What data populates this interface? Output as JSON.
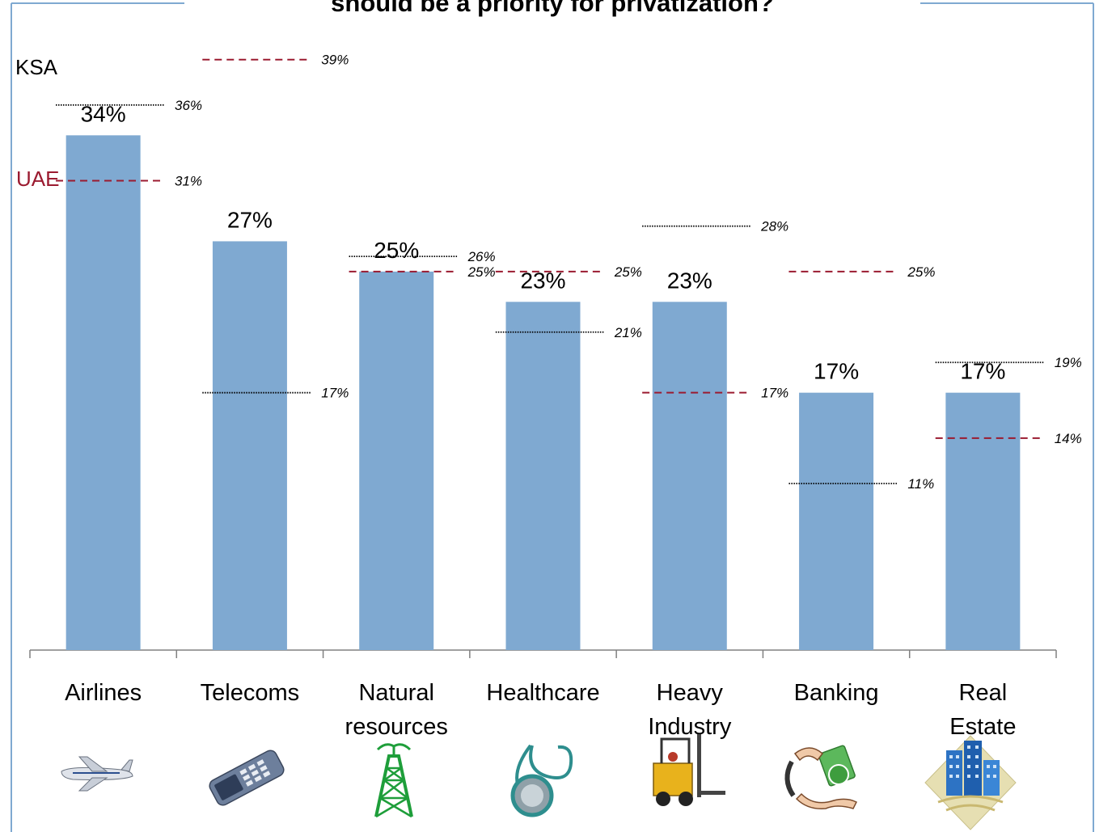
{
  "title": "should be a priority for privatization?",
  "chart_data": {
    "type": "bar",
    "title": "should be a priority for privatization?",
    "categories": [
      [
        "Airlines"
      ],
      [
        "Telecoms"
      ],
      [
        "Natural",
        "resources"
      ],
      [
        "Healthcare"
      ],
      [
        "Heavy",
        "Industry"
      ],
      [
        "Banking"
      ],
      [
        "Real",
        "Estate"
      ]
    ],
    "values": [
      34,
      27,
      25,
      23,
      23,
      17,
      17
    ],
    "value_labels": [
      "34%",
      "27%",
      "25%",
      "23%",
      "23%",
      "17%",
      "17%"
    ],
    "ylim": [
      0,
      40
    ],
    "overlays": [
      {
        "name": "KSA",
        "style": "dotted",
        "color": "#000000",
        "values": [
          36,
          17,
          26,
          21,
          28,
          11,
          19
        ],
        "labels": [
          "36%",
          "17%",
          "26%",
          "21%",
          "28%",
          "11%",
          "19%"
        ]
      },
      {
        "name": "UAE",
        "style": "dashed",
        "color": "#9b1b30",
        "values": [
          31,
          39,
          25,
          25,
          17,
          25,
          14
        ],
        "labels": [
          "31%",
          "39%",
          "25%",
          "25%",
          "17%",
          "25%",
          "14%"
        ]
      }
    ],
    "colors": {
      "bar": "#7fa9d1",
      "axis": "#808080",
      "frame": "#7fa9d1"
    }
  },
  "icons": [
    "airplane-icon",
    "mobile-phone-icon",
    "oil-derrick-icon",
    "stethoscope-icon",
    "forklift-icon",
    "money-exchange-icon",
    "office-building-icon"
  ]
}
